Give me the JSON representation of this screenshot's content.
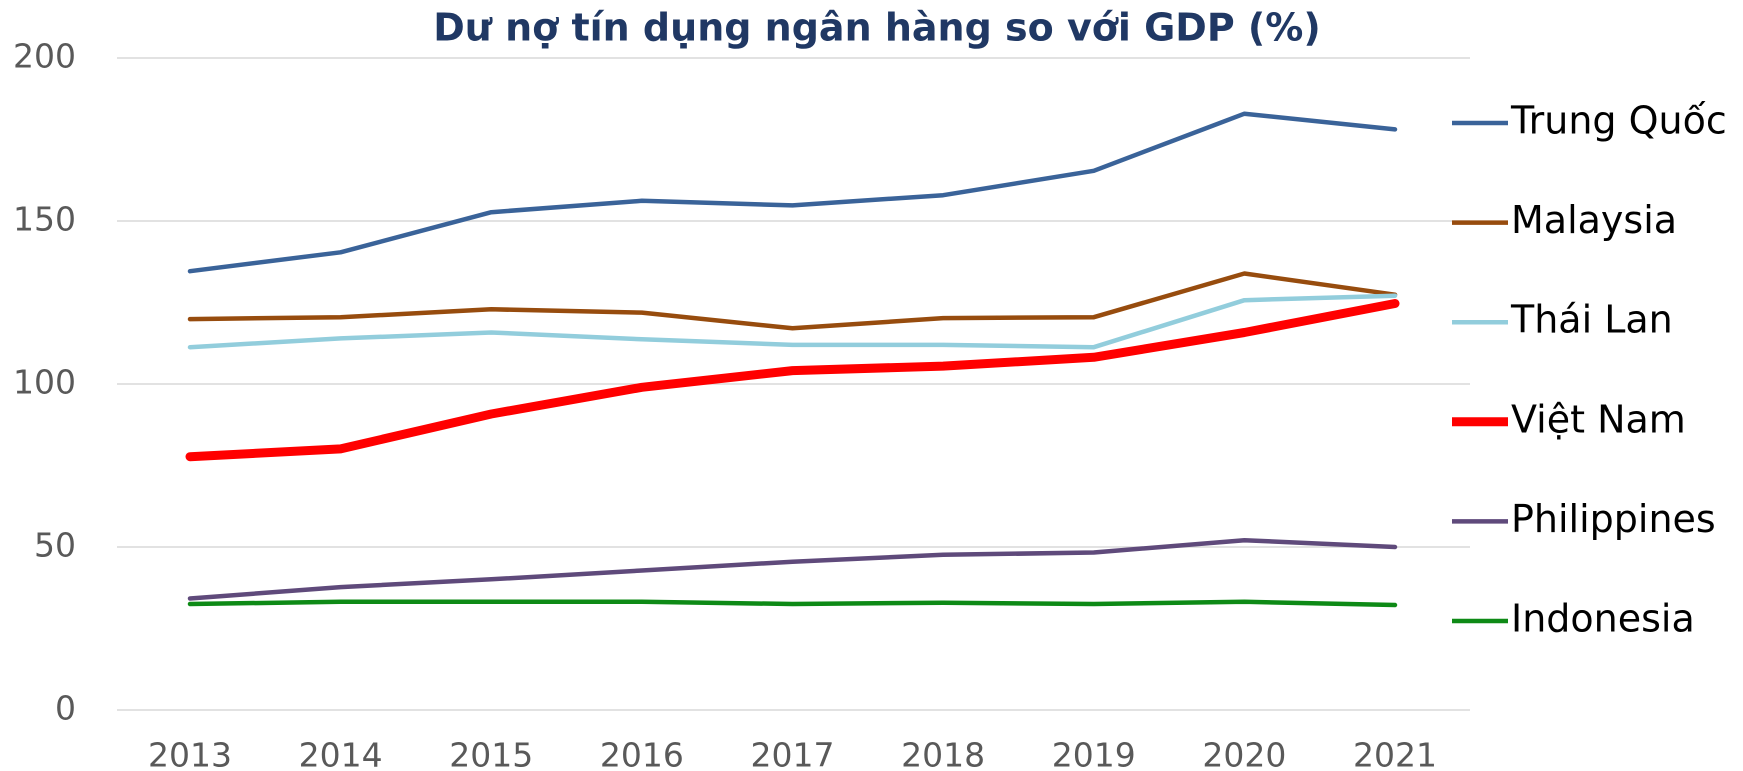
{
  "chart_data": {
    "type": "line",
    "title": "Dư nợ tín dụng ngân hàng so với GDP (%)",
    "categories": [
      "2013",
      "2014",
      "2015",
      "2016",
      "2017",
      "2018",
      "2019",
      "2020",
      "2021"
    ],
    "series": [
      {
        "name": "Trung Quốc",
        "color": "#3a6399",
        "values": [
          134.6,
          140.4,
          152.7,
          156.2,
          154.8,
          157.9,
          165.4,
          182.9,
          178.1
        ]
      },
      {
        "name": "Malaysia",
        "color": "#974c0e",
        "values": [
          119.9,
          120.5,
          122.9,
          121.9,
          117.1,
          120.2,
          120.5,
          133.9,
          127.4
        ]
      },
      {
        "name": "Thái Lan",
        "color": "#92cddc",
        "values": [
          111.3,
          114.0,
          115.8,
          113.7,
          112.0,
          112.0,
          111.3,
          125.7,
          127.1
        ]
      },
      {
        "name": "Việt Nam",
        "color": "#ff0000",
        "values": [
          77.7,
          80.1,
          90.8,
          99.0,
          104.1,
          105.5,
          108.2,
          115.8,
          124.7
        ]
      },
      {
        "name": "Philippines",
        "color": "#5f4a7b",
        "values": [
          34.2,
          37.7,
          40.1,
          42.8,
          45.5,
          47.6,
          48.3,
          52.1,
          50.0
        ]
      },
      {
        "name": "Indonesia",
        "color": "#0e8a16",
        "values": [
          32.5,
          33.2,
          33.2,
          33.2,
          32.5,
          32.9,
          32.5,
          33.2,
          32.2
        ]
      }
    ],
    "ylim": [
      0,
      200
    ],
    "yticks": [
      0,
      50,
      100,
      150,
      200
    ],
    "grid": true,
    "legend": "right"
  }
}
